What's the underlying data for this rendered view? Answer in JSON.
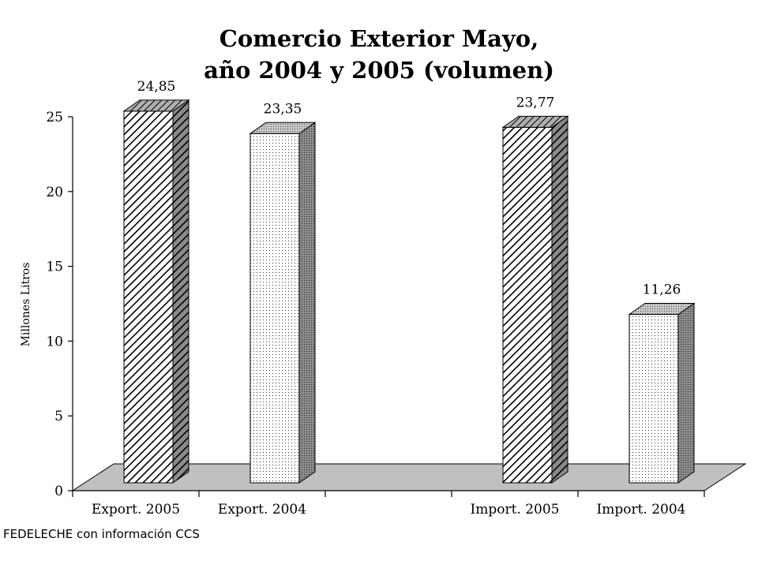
{
  "chart_data": {
    "type": "bar",
    "title_line1": "Comercio Exterior Mayo,",
    "title_line2": "año 2004 y 2005 (volumen)",
    "ylabel": "Millones Litros",
    "xlabel": "",
    "categories": [
      "Export. 2005",
      "Export. 2004",
      "",
      "Import. 2005",
      "Import. 2004"
    ],
    "values": [
      24.85,
      23.35,
      null,
      23.77,
      11.26
    ],
    "data_labels": [
      "24,85",
      "23,35",
      "",
      "23,77",
      "11,26"
    ],
    "patterns": [
      "diagonal-hatch",
      "dotted",
      "",
      "diagonal-hatch",
      "dotted"
    ],
    "yticks": [
      0,
      5,
      10,
      15,
      20,
      25
    ],
    "ylim": [
      0,
      25
    ],
    "grid": false,
    "three_d": true,
    "colors": {
      "floor": "#c0c0c0",
      "axis": "#000000",
      "bar_fill": "#ffffff"
    }
  },
  "source_note": "FEDELECHE con información CCS"
}
